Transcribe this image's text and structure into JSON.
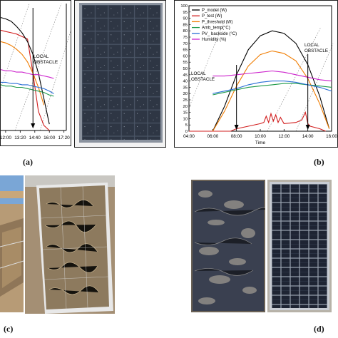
{
  "figure": {
    "panel_labels": {
      "a": "(a)",
      "b": "(b)",
      "c": "(c)",
      "d": "(d)"
    }
  },
  "chart_data": [
    {
      "panel": "a",
      "type": "line",
      "x_ticks": [
        "12:00",
        "13:20",
        "14:40",
        "16:00",
        "17:20"
      ],
      "x_positions_hours": [
        12.0,
        13.333,
        14.667,
        16.0,
        17.333
      ],
      "xlim_hours": [
        11.55,
        17.55
      ],
      "ylim": [
        0,
        100
      ],
      "annotation": "LOCAL\nOBSTACLE",
      "obstacle_time_hours": 14.5,
      "colors": [
        "#d21f1f",
        "#000000",
        "#f07c00",
        "#cc22cc",
        "#2a6fd6",
        "#1f9a4a"
      ],
      "series": [
        {
          "x": [
            11.55,
            12.0,
            12.5,
            13.0,
            13.5,
            14.0,
            14.5,
            15.0,
            15.5,
            16.0
          ],
          "y": [
            79,
            78,
            77,
            76,
            74,
            72,
            45,
            15,
            4,
            0
          ]
        },
        {
          "x": [
            11.55,
            12.0,
            12.5,
            13.0,
            13.5,
            14.0,
            14.5,
            15.0,
            15.5,
            16.0
          ],
          "y": [
            89,
            88,
            86,
            82,
            77,
            70,
            60,
            45,
            25,
            5
          ]
        },
        {
          "x": [
            11.55,
            12.0,
            12.5,
            13.0,
            13.5,
            14.0,
            14.5,
            15.0,
            15.5
          ],
          "y": [
            70,
            69,
            67,
            64,
            60,
            54,
            45,
            34,
            20
          ]
        },
        {
          "x": [
            11.55,
            12.0,
            12.5,
            13.0,
            13.5,
            14.0,
            14.5,
            15.0,
            15.5,
            16.0,
            16.4
          ],
          "y": [
            48,
            47,
            47,
            46,
            46,
            45,
            44,
            44,
            43,
            42,
            41
          ]
        },
        {
          "x": [
            11.55,
            12.0,
            12.5,
            13.0,
            13.5,
            14.0,
            14.5,
            15.0,
            15.5,
            16.0,
            16.4
          ],
          "y": [
            38,
            38,
            37,
            37,
            36,
            36,
            35,
            34,
            33,
            31,
            29
          ]
        },
        {
          "x": [
            11.55,
            12.0,
            12.5,
            13.0,
            13.5,
            14.0,
            14.5,
            15.0,
            15.5,
            16.0,
            16.4
          ],
          "y": [
            36,
            35,
            35,
            34,
            34,
            33,
            32,
            31,
            30,
            28,
            27
          ]
        }
      ]
    },
    {
      "panel": "b",
      "type": "line",
      "xlabel": "Time",
      "x_ticks": [
        "04:00",
        "06:00",
        "08:00",
        "10:00",
        "12:00",
        "14:00",
        "16:00"
      ],
      "x_positions_hours": [
        4,
        6,
        8,
        10,
        12,
        14,
        16
      ],
      "xlim": [
        4,
        16
      ],
      "ylim": [
        0,
        100
      ],
      "y_ticks": [
        0,
        5,
        10,
        15,
        20,
        25,
        30,
        35,
        40,
        45,
        50,
        55,
        60,
        65,
        70,
        75,
        80,
        85,
        90,
        95,
        100
      ],
      "legend_position": "top-left",
      "annotations": [
        "LOCAL\nOBSTACLE",
        "LOCAL\nOBSTACLE"
      ],
      "obstacle_times": [
        8.0,
        14.0
      ],
      "series": [
        {
          "name": "P_model (W)",
          "color": "#000000",
          "x": [
            6.0,
            7.0,
            8.0,
            9.0,
            10.0,
            11.0,
            12.0,
            13.0,
            14.0,
            15.0,
            15.8
          ],
          "y": [
            0,
            20,
            45,
            65,
            76,
            80,
            78,
            70,
            53,
            28,
            2
          ]
        },
        {
          "name": "P_test (W)",
          "color": "#d21f1f",
          "x": [
            4,
            7.5,
            8.0,
            9.0,
            10.0,
            10.3,
            10.5,
            10.7,
            10.9,
            11.1,
            11.3,
            11.5,
            11.7,
            12.0,
            13.0,
            13.5,
            13.8,
            14.0,
            14.2,
            15.0,
            15.5
          ],
          "y": [
            0,
            0,
            2,
            4,
            6,
            7,
            12,
            7,
            14,
            8,
            13,
            7,
            11,
            6,
            7,
            9,
            15,
            6,
            4,
            2,
            0
          ]
        },
        {
          "name": "P_threshold (W)",
          "color": "#f07c00",
          "x": [
            6.0,
            7.0,
            8.0,
            9.0,
            10.0,
            11.0,
            12.0,
            13.0,
            14.0,
            15.0,
            15.8
          ],
          "y": [
            0,
            16,
            36,
            52,
            61,
            64,
            62,
            56,
            42,
            22,
            2
          ]
        },
        {
          "name": "Amb_temp(°C)",
          "color": "#1f9a4a",
          "x": [
            6.0,
            7.0,
            8.0,
            9.0,
            10.0,
            11.0,
            12.0,
            13.0,
            14.0,
            15.0,
            16.0
          ],
          "y": [
            29,
            31,
            33,
            35,
            36,
            37,
            38,
            38,
            37,
            36,
            35
          ]
        },
        {
          "name": "PV_ backside (°C)",
          "color": "#2a6fd6",
          "x": [
            6.0,
            7.0,
            8.0,
            9.0,
            10.0,
            11.0,
            12.0,
            13.0,
            14.0,
            15.0,
            16.0
          ],
          "y": [
            30,
            32,
            34,
            37,
            39,
            40,
            40,
            39,
            37,
            35,
            32
          ]
        },
        {
          "name": "Humidity (%)",
          "color": "#cc22cc",
          "x": [
            6.0,
            7.0,
            8.0,
            9.0,
            10.0,
            11.0,
            12.0,
            13.0,
            14.0,
            15.0,
            16.0
          ],
          "y": [
            44,
            44,
            45,
            46,
            47,
            48,
            47,
            45,
            43,
            41,
            40
          ]
        }
      ]
    }
  ]
}
